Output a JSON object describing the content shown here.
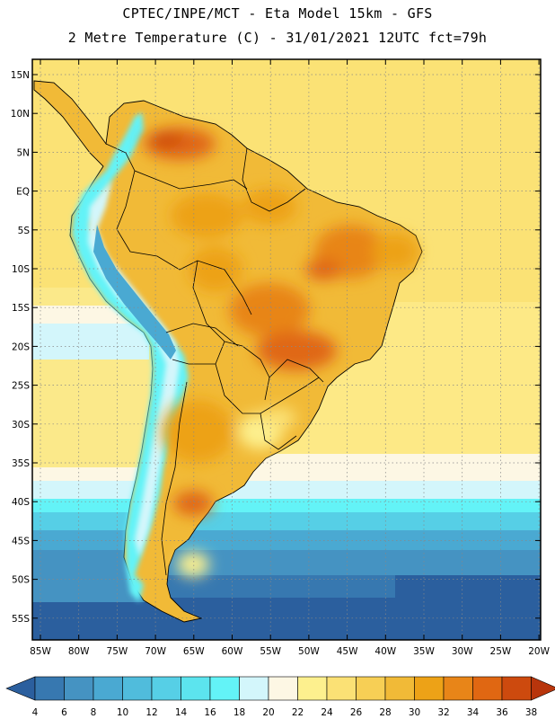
{
  "header": {
    "line1": "CPTEC/INPE/MCT -  Eta Model 15km - GFS",
    "line2": "2 Metre Temperature (C) - 31/01/2021 12UTC fct=79h"
  },
  "map": {
    "lat_labels": [
      "15N",
      "10N",
      "5N",
      "EQ",
      "5S",
      "10S",
      "15S",
      "20S",
      "25S",
      "30S",
      "35S",
      "40S",
      "45S",
      "50S",
      "55S"
    ],
    "lon_labels": [
      "85W",
      "80W",
      "75W",
      "70W",
      "65W",
      "60W",
      "55W",
      "50W",
      "45W",
      "40W",
      "35W",
      "30W",
      "25W",
      "20W"
    ]
  },
  "legend": {
    "ticks": [
      "4",
      "6",
      "8",
      "10",
      "12",
      "14",
      "16",
      "18",
      "20",
      "22",
      "24",
      "26",
      "28",
      "30",
      "32",
      "34",
      "36",
      "38"
    ],
    "colors": [
      "#2b5f9e",
      "#3778b0",
      "#4593c2",
      "#4aa9d2",
      "#50bcdc",
      "#56cfe6",
      "#5ce4ee",
      "#63f3f7",
      "#d3f6fb",
      "#fdf7e4",
      "#fdf08e",
      "#fbe175",
      "#f7cf55",
      "#f1ba37",
      "#eda217",
      "#e88518",
      "#e06712",
      "#cd4a0e",
      "#b8350c"
    ]
  }
}
